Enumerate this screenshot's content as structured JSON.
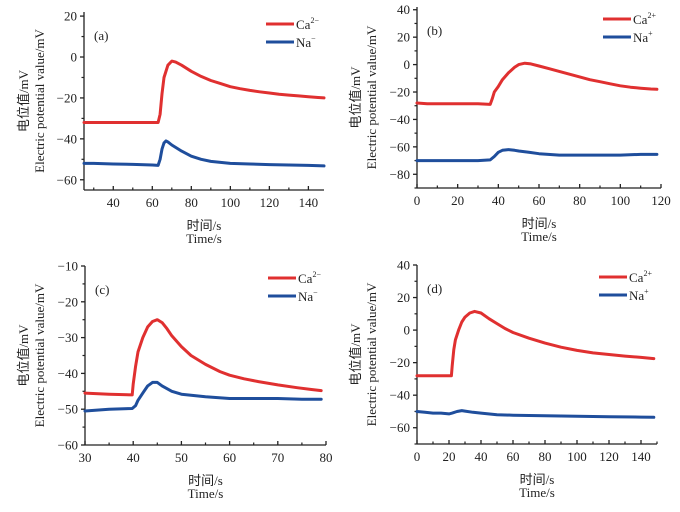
{
  "chart_data": [
    {
      "type": "line",
      "panel_label": "(a)",
      "xlabel_cn": "时间/s",
      "xlabel": "Time/s",
      "ylabel_cn": "电位值/mV",
      "ylabel": "Electric potential value/mV",
      "xlim": [
        25,
        148
      ],
      "ylim": [
        -65,
        22
      ],
      "xticks": [
        40,
        60,
        80,
        100,
        120,
        140
      ],
      "yticks": [
        20,
        0,
        -20,
        -40,
        -60
      ],
      "legend_position": "top-right",
      "series": [
        {
          "name": "Ca",
          "sup": "2−",
          "color": "#e03030",
          "x": [
            25,
            30,
            36,
            40,
            45,
            50,
            55,
            60,
            63,
            64,
            65,
            66,
            68,
            70,
            72,
            75,
            80,
            85,
            90,
            95,
            100,
            105,
            110,
            115,
            120,
            125,
            130,
            135,
            140,
            145,
            148
          ],
          "y": [
            -32,
            -32,
            -32,
            -32,
            -32,
            -32,
            -32,
            -32,
            -32,
            -28,
            -18,
            -10,
            -4,
            -2,
            -2.5,
            -4,
            -7,
            -9.5,
            -11.5,
            -13,
            -14.5,
            -15.5,
            -16.3,
            -17,
            -17.6,
            -18.2,
            -18.6,
            -19,
            -19.4,
            -19.8,
            -20
          ]
        },
        {
          "name": "Na",
          "sup": "−",
          "color": "#1f4e9c",
          "x": [
            25,
            30,
            40,
            50,
            60,
            63,
            64,
            65,
            66,
            67,
            68,
            70,
            75,
            80,
            85,
            90,
            100,
            110,
            120,
            130,
            140,
            148
          ],
          "y": [
            -52,
            -52,
            -52.3,
            -52.5,
            -52.8,
            -53,
            -50,
            -45,
            -42,
            -41,
            -41.5,
            -43,
            -46,
            -48.5,
            -50,
            -51,
            -52,
            -52.3,
            -52.6,
            -52.8,
            -53,
            -53.2
          ]
        }
      ]
    },
    {
      "type": "line",
      "panel_label": "(b)",
      "xlabel_cn": "时间/s",
      "xlabel": "Time/s",
      "ylabel_cn": "电位值/mV",
      "ylabel": "Electric potential value/mV",
      "xlim": [
        0,
        120
      ],
      "ylim": [
        -90,
        42
      ],
      "xticks": [
        0,
        20,
        40,
        60,
        80,
        100,
        120
      ],
      "yticks": [
        40,
        20,
        0,
        -20,
        -40,
        -60,
        -80
      ],
      "legend_position": "top-right",
      "series": [
        {
          "name": "Ca",
          "sup": "2+",
          "color": "#e03030",
          "x": [
            0,
            5,
            10,
            20,
            30,
            36,
            37,
            38,
            40,
            42,
            45,
            48,
            50,
            53,
            56,
            60,
            65,
            70,
            75,
            80,
            85,
            90,
            95,
            100,
            105,
            110,
            115,
            118
          ],
          "y": [
            -28,
            -28.5,
            -28.5,
            -28.5,
            -28.5,
            -29,
            -25,
            -20,
            -16,
            -11,
            -6,
            -2,
            0,
            1,
            0.5,
            -1,
            -3,
            -5,
            -7,
            -9,
            -11,
            -12.5,
            -14,
            -15.5,
            -16.5,
            -17.2,
            -17.8,
            -18
          ]
        },
        {
          "name": "Na",
          "sup": "+",
          "color": "#1f4e9c",
          "x": [
            0,
            10,
            20,
            30,
            36,
            38,
            40,
            42,
            45,
            48,
            50,
            55,
            60,
            70,
            80,
            90,
            100,
            110,
            118
          ],
          "y": [
            -70,
            -70,
            -70,
            -70,
            -69.5,
            -67,
            -64,
            -62.5,
            -62,
            -62.5,
            -63,
            -64,
            -65,
            -66,
            -66,
            -66,
            -66,
            -65.5,
            -65.5
          ]
        }
      ]
    },
    {
      "type": "line",
      "panel_label": "(c)",
      "xlabel_cn": "时间/s",
      "xlabel": "Time/s",
      "ylabel_cn": "电位值/mV",
      "ylabel": "Electric potential value/mV",
      "xlim": [
        30,
        80
      ],
      "ylim": [
        -60,
        -10
      ],
      "xticks": [
        30,
        40,
        50,
        60,
        70,
        80
      ],
      "yticks": [
        -10,
        -20,
        -30,
        -40,
        -50,
        -60
      ],
      "legend_position": "top-right",
      "series": [
        {
          "name": "Ca",
          "sup": "2−",
          "color": "#e03030",
          "x": [
            30,
            35,
            39.8,
            40,
            40.5,
            41,
            42,
            43,
            44,
            45,
            46,
            47,
            48,
            50,
            52,
            55,
            58,
            60,
            63,
            66,
            70,
            74,
            77,
            79
          ],
          "y": [
            -45.5,
            -45.8,
            -46,
            -43,
            -38,
            -34,
            -30,
            -27,
            -25.5,
            -25,
            -25.8,
            -27.5,
            -29.5,
            -32.5,
            -35,
            -37.5,
            -39.5,
            -40.5,
            -41.5,
            -42.3,
            -43.2,
            -44,
            -44.5,
            -44.8
          ]
        },
        {
          "name": "Na",
          "sup": "−",
          "color": "#1f4e9c",
          "x": [
            30,
            35,
            39.8,
            40.5,
            41,
            42,
            43,
            44,
            45,
            46,
            48,
            50,
            55,
            60,
            65,
            70,
            75,
            79
          ],
          "y": [
            -50.5,
            -50,
            -49.8,
            -49,
            -47.5,
            -45.5,
            -43.5,
            -42.5,
            -42.5,
            -43.5,
            -45,
            -45.8,
            -46.5,
            -47,
            -47,
            -47,
            -47.2,
            -47.2
          ]
        }
      ]
    },
    {
      "type": "line",
      "panel_label": "(d)",
      "xlabel_cn": "时间/s",
      "xlabel": "Time/s",
      "ylabel_cn": "电位值/mV",
      "ylabel": "Electric potential value/mV",
      "xlim": [
        0,
        150
      ],
      "ylim": [
        -70,
        40
      ],
      "xticks": [
        0,
        20,
        40,
        60,
        80,
        100,
        120,
        140
      ],
      "yticks": [
        40,
        20,
        0,
        -20,
        -40,
        -60
      ],
      "legend_position": "top-right",
      "series": [
        {
          "name": "Ca",
          "sup": "2+",
          "color": "#e03030",
          "x": [
            0,
            5,
            10,
            15,
            20,
            21.5,
            22,
            23,
            24,
            26,
            28,
            30,
            33,
            36,
            40,
            45,
            50,
            55,
            60,
            70,
            80,
            90,
            100,
            110,
            120,
            130,
            140,
            148
          ],
          "y": [
            -28,
            -28,
            -28,
            -28,
            -28,
            -28,
            -22,
            -12,
            -6,
            0,
            5,
            8,
            10.5,
            11.5,
            10.5,
            7,
            4,
            1,
            -1.5,
            -5,
            -8,
            -10.5,
            -12.5,
            -14,
            -15,
            -16,
            -16.8,
            -17.5
          ]
        },
        {
          "name": "Na",
          "sup": "+",
          "color": "#1f4e9c",
          "x": [
            0,
            5,
            10,
            15,
            20,
            22,
            25,
            28,
            30,
            35,
            40,
            50,
            60,
            80,
            100,
            120,
            140,
            148
          ],
          "y": [
            -50,
            -50.5,
            -51,
            -51,
            -51.5,
            -51,
            -50,
            -49.5,
            -49.8,
            -50.5,
            -51,
            -52,
            -52.3,
            -52.7,
            -53,
            -53.3,
            -53.5,
            -53.6
          ]
        }
      ]
    }
  ]
}
